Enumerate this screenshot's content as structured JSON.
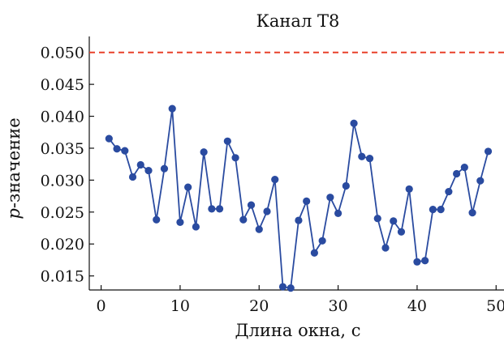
{
  "chart_data": {
    "type": "line",
    "title": "Канал T8",
    "xlabel": "Длина окна, с",
    "ylabel": "p-значение",
    "ylabel_italic": "p",
    "ylabel_rest": "-значение",
    "xlim": [
      -1.5,
      51
    ],
    "ylim": [
      0.0128,
      0.0525
    ],
    "x_ticks": [
      0,
      10,
      20,
      30,
      40,
      50
    ],
    "x_tick_labels": [
      "0",
      "10",
      "20",
      "30",
      "40",
      "50"
    ],
    "y_ticks": [
      0.015,
      0.02,
      0.025,
      0.03,
      0.035,
      0.04,
      0.045,
      0.05
    ],
    "y_tick_labels": [
      "0.015",
      "0.020",
      "0.025",
      "0.030",
      "0.035",
      "0.040",
      "0.045",
      "0.050"
    ],
    "grid": false,
    "reference_line": {
      "y": 0.05,
      "color": "#e8412a",
      "style": "dashed"
    },
    "series": [
      {
        "color": "#2a4ba0",
        "marker": "circle",
        "x": [
          1,
          2,
          3,
          4,
          5,
          6,
          7,
          8,
          9,
          10,
          11,
          12,
          13,
          14,
          15,
          16,
          17,
          18,
          19,
          20,
          21,
          22,
          23,
          24,
          25,
          26,
          27,
          28,
          29,
          30,
          31,
          32,
          33,
          34,
          35,
          36,
          37,
          38,
          39,
          40,
          41,
          42,
          43,
          44,
          45,
          46,
          47,
          48,
          49
        ],
        "values": [
          0.0365,
          0.0349,
          0.0346,
          0.0305,
          0.0324,
          0.0315,
          0.0238,
          0.0318,
          0.0412,
          0.0234,
          0.0289,
          0.0227,
          0.0344,
          0.0255,
          0.0255,
          0.0361,
          0.0335,
          0.0238,
          0.0261,
          0.0223,
          0.0251,
          0.0301,
          0.0133,
          0.0131,
          0.0237,
          0.0267,
          0.0186,
          0.0205,
          0.0273,
          0.0248,
          0.0291,
          0.0389,
          0.0337,
          0.0334,
          0.024,
          0.0194,
          0.0236,
          0.0219,
          0.0286,
          0.0172,
          0.0174,
          0.0254,
          0.0254,
          0.0282,
          0.031,
          0.032,
          0.0249,
          0.0299,
          0.0345
        ]
      }
    ]
  }
}
